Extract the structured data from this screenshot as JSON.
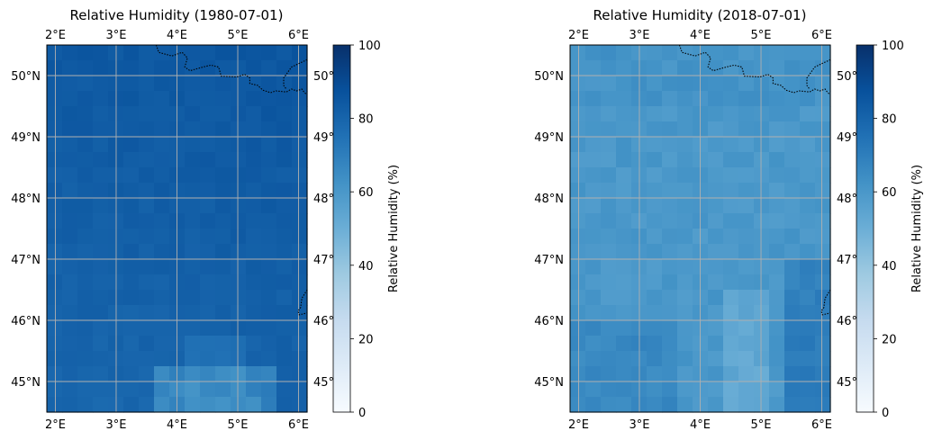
{
  "chart_data": [
    {
      "type": "heatmap",
      "title": "Relative Humidity (1980-07-01)",
      "date": "1980-07-01",
      "x_ticks": [
        "2°E",
        "3°E",
        "4°E",
        "5°E",
        "6°E"
      ],
      "x_tick_values": [
        2,
        3,
        4,
        5,
        6
      ],
      "y_ticks": [
        "50°N",
        "49°N",
        "48°N",
        "47°N",
        "46°N",
        "45°N"
      ],
      "y_tick_values": [
        50,
        49,
        48,
        47,
        46,
        45
      ],
      "right_tick_labels": [
        "50°",
        "49°",
        "48°",
        "47°",
        "46°",
        "45°"
      ],
      "lon_range": [
        1.86,
        6.14
      ],
      "lat_range": [
        44.5,
        50.5
      ],
      "grid": true,
      "values_description": "Mostly 80-88% across the domain, slightly lower (~62-72%) along the southern edge near 4-5°E",
      "colorbar": {
        "label": "Relative Humidity (%)",
        "ticks": [
          "0",
          "20",
          "40",
          "60",
          "80",
          "100"
        ],
        "tick_values": [
          0,
          20,
          40,
          60,
          80,
          100
        ],
        "range": [
          0,
          100
        ],
        "colormap": "Blues"
      }
    },
    {
      "type": "heatmap",
      "title": "Relative Humidity (2018-07-01)",
      "date": "2018-07-01",
      "x_ticks": [
        "2°E",
        "3°E",
        "4°E",
        "5°E",
        "6°E"
      ],
      "x_tick_values": [
        2,
        3,
        4,
        5,
        6
      ],
      "y_ticks": [
        "50°N",
        "49°N",
        "48°N",
        "47°N",
        "46°N",
        "45°N"
      ],
      "y_tick_values": [
        50,
        49,
        48,
        47,
        46,
        45
      ],
      "right_tick_labels": [
        "50°",
        "49°",
        "48°",
        "47°",
        "46°",
        "45°"
      ],
      "lon_range": [
        1.86,
        6.14
      ],
      "lat_range": [
        44.5,
        50.5
      ],
      "grid": true,
      "values_description": "Mostly 55-65% across the domain, higher (~70-75%) in the south-east and south-west, lowest (~50%) near 4.8°E south",
      "colorbar": {
        "label": "Relative Humidity (%)",
        "ticks": [
          "0",
          "20",
          "40",
          "60",
          "80",
          "100"
        ],
        "tick_values": [
          0,
          20,
          40,
          60,
          80,
          100
        ],
        "range": [
          0,
          100
        ],
        "colormap": "Blues"
      }
    }
  ]
}
